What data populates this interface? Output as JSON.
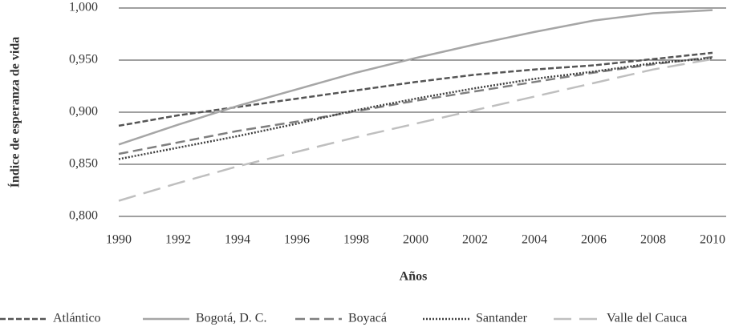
{
  "chart_data": {
    "type": "line",
    "x_label": "Años",
    "y_label": "Índice de esperanza de vida",
    "x": [
      1990,
      1992,
      1994,
      1996,
      1998,
      2000,
      2002,
      2004,
      2006,
      2008,
      2010
    ],
    "xlim": [
      1990,
      2010
    ],
    "xticks": [
      1990,
      1992,
      1994,
      1996,
      1998,
      2000,
      2002,
      2004,
      2006,
      2008,
      2010
    ],
    "ylim": [
      0.8,
      1.0
    ],
    "yticks": [
      {
        "value": 0.8,
        "label": "0,800"
      },
      {
        "value": 0.85,
        "label": "0,850"
      },
      {
        "value": 0.9,
        "label": "0,900"
      },
      {
        "value": 0.95,
        "label": "0,950"
      },
      {
        "value": 1.0,
        "label": "1,000"
      }
    ],
    "grid": true,
    "legend": "bottom",
    "series": [
      {
        "name": "Atlántico",
        "color": "#555555",
        "values": [
          0.887,
          0.897,
          0.905,
          0.913,
          0.921,
          0.929,
          0.936,
          0.941,
          0.945,
          0.951,
          0.957
        ]
      },
      {
        "name": "Bogotá, D. C.",
        "color": "#a6a6a6",
        "values": [
          0.869,
          0.888,
          0.906,
          0.922,
          0.938,
          0.952,
          0.965,
          0.977,
          0.988,
          0.995,
          0.998
        ]
      },
      {
        "name": "Boyacá",
        "color": "#7f7f7f",
        "values": [
          0.86,
          0.871,
          0.882,
          0.891,
          0.901,
          0.911,
          0.92,
          0.929,
          0.938,
          0.946,
          0.953
        ]
      },
      {
        "name": "Santander",
        "color": "#404040",
        "values": [
          0.855,
          0.866,
          0.877,
          0.889,
          0.902,
          0.913,
          0.923,
          0.932,
          0.939,
          0.947,
          0.952
        ]
      },
      {
        "name": "Valle del Cauca",
        "color": "#bfbfbf",
        "values": [
          0.815,
          0.832,
          0.848,
          0.862,
          0.876,
          0.889,
          0.902,
          0.915,
          0.928,
          0.941,
          0.951
        ]
      }
    ]
  }
}
